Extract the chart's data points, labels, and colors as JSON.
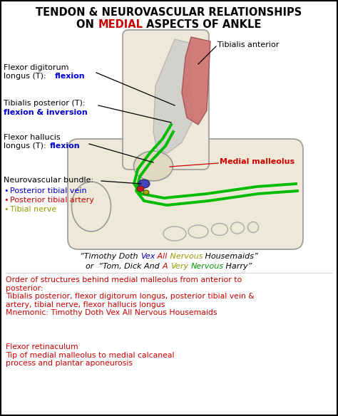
{
  "title_line1": "TENDON & NEUROVASCULAR RELATIONSHIPS",
  "title_line2_parts": [
    {
      "text": "ON ",
      "color": "#000000"
    },
    {
      "text": "MEDIAL",
      "color": "#cc0000"
    },
    {
      "text": " ASPECTS OF ANKLE",
      "color": "#000000"
    }
  ],
  "label1_black": "Flexor digitorum\nlongus (T):  ",
  "label1_blue": "flexion",
  "label2_black1": "Tibialis posterior (T):",
  "label2_blue": "flexion & inversion",
  "label3_black": "Flexor hallucis\nlongus (T): ",
  "label3_blue": "flexion",
  "label4_black": "Neurovascular bundle:",
  "label4_dot1_blue": "Posterior tibial vein",
  "label4_dot2_red": "Posterior tibial artery",
  "label4_dot3_olive": "Tibial nerve",
  "right_label1": "Tibialis anterior",
  "right_label2_red": "Medial malleolus",
  "mnemonic_line1": [
    {
      "text": "“Timothy Doth ",
      "color": "#000000"
    },
    {
      "text": "Vex",
      "color": "#0000cc"
    },
    {
      "text": " All",
      "color": "#cc0000"
    },
    {
      "text": " Nervous",
      "color": "#999900"
    },
    {
      "text": " Housemaids”",
      "color": "#000000"
    }
  ],
  "mnemonic_line2": [
    {
      "text": "or  “Tom, Dick And ",
      "color": "#000000"
    },
    {
      "text": "A",
      "color": "#cc0000"
    },
    {
      "text": " ",
      "color": "#000000"
    },
    {
      "text": "Very",
      "color": "#999900"
    },
    {
      "text": " ",
      "color": "#000000"
    },
    {
      "text": "Nervous",
      "color": "#009900"
    },
    {
      "text": " Harry”",
      "color": "#000000"
    }
  ],
  "order_text": "Order of structures behind medial malleolus from anterior to\nposterior:\nTibialis posterior, flexor digitorum longus, posterior tibial vein &\nartery, tibial nerve, flexor hallucis longus\nMnemonic: Timothy Doth Vex All Nervous Housemaids",
  "flexor_text": "Flexor retinaculum\nTip of medial malleolus to medial calcaneal\nprocess and plantar aponeurosis",
  "bg_color": "#ffffff",
  "black": "#000000",
  "red": "#cc0000",
  "blue": "#0000cc",
  "olive": "#999900",
  "green": "#009900"
}
